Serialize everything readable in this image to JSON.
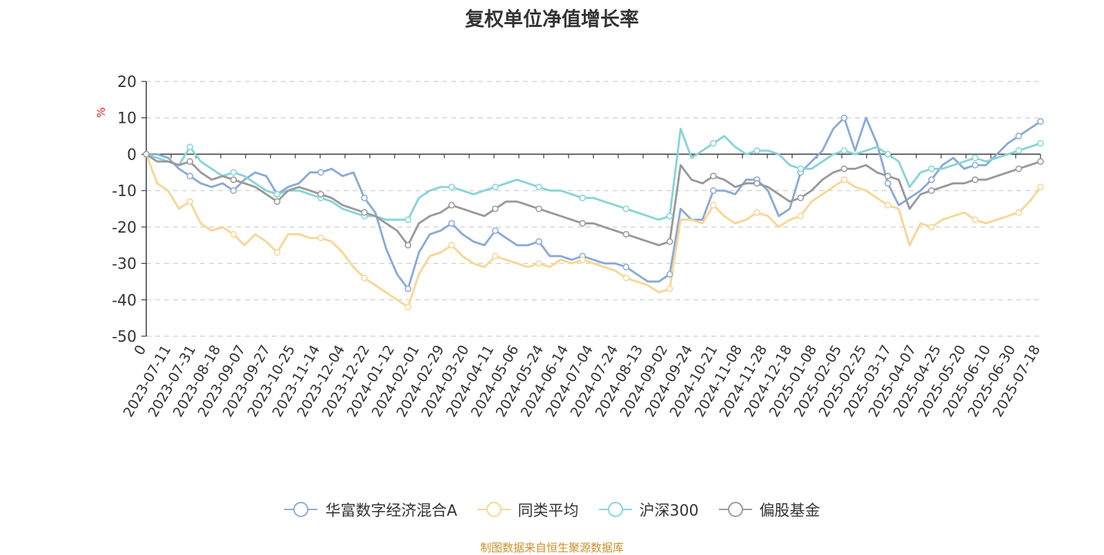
{
  "title": "复权单位净值增长率",
  "source_note": "制图数据来自恒生聚源数据库",
  "chart_data": {
    "type": "line",
    "title": "复权单位净值增长率",
    "ylabel": "%",
    "ylim": [
      -50,
      20
    ],
    "yticks": [
      20,
      10,
      0,
      -10,
      -20,
      -30,
      -40,
      -50
    ],
    "grid": true,
    "legend_position": "bottom",
    "x_tick_labels": [
      "0",
      "2023-07-11",
      "2023-07-31",
      "2023-08-18",
      "2023-09-07",
      "2023-09-27",
      "2023-10-25",
      "2023-11-14",
      "2023-12-04",
      "2023-12-22",
      "2024-01-12",
      "2024-02-01",
      "2024-02-29",
      "2024-03-20",
      "2024-04-11",
      "2024-05-06",
      "2024-05-24",
      "2024-06-14",
      "2024-07-04",
      "2024-07-24",
      "2024-08-13",
      "2024-09-02",
      "2024-09-24",
      "2024-10-21",
      "2024-11-08",
      "2024-11-28",
      "2024-12-18",
      "2025-01-08",
      "2025-02-05",
      "2025-02-25",
      "2025-03-17",
      "2025-04-07",
      "2025-04-25",
      "2025-05-20",
      "2025-06-10",
      "2025-06-30",
      "2025-07-18"
    ],
    "series": [
      {
        "name": "华富数字经济混合A",
        "color": "#8aaad8",
        "values": [
          0,
          0,
          -1,
          -4,
          -6,
          -8,
          -9,
          -8,
          -10,
          -7,
          -5,
          -6,
          -11,
          -9,
          -8,
          -5,
          -5,
          -4,
          -6,
          -5,
          -12,
          -16,
          -26,
          -33,
          -37,
          -27,
          -22,
          -21,
          -19,
          -22,
          -24,
          -25,
          -21,
          -23,
          -25,
          -25,
          -24,
          -28,
          -28,
          -29,
          -28,
          -29,
          -30,
          -30,
          -31,
          -33,
          -35,
          -35,
          -33,
          -15,
          -18,
          -18,
          -10,
          -10,
          -11,
          -7,
          -7,
          -10,
          -17,
          -15,
          -5,
          -2,
          1,
          7,
          10,
          1,
          10,
          3,
          -8,
          -14,
          -12,
          -10,
          -7,
          -3,
          -1,
          -4,
          -3,
          -3,
          0,
          3,
          5,
          7,
          9
        ]
      },
      {
        "name": "同类平均",
        "color": "#f9d593",
        "values": [
          0,
          -8,
          -10,
          -15,
          -13,
          -19,
          -21,
          -20,
          -22,
          -25,
          -22,
          -24,
          -27,
          -22,
          -22,
          -23,
          -23,
          -24,
          -27,
          -31,
          -34,
          -36,
          -38,
          -40,
          -42,
          -33,
          -28,
          -27,
          -25,
          -28,
          -30,
          -31,
          -28,
          -29,
          -30,
          -31,
          -30,
          -31,
          -29,
          -30,
          -29,
          -30,
          -31,
          -32,
          -34,
          -35,
          -36,
          -38,
          -37,
          -18,
          -18,
          -19,
          -14,
          -17,
          -19,
          -18,
          -16,
          -17,
          -20,
          -18,
          -17,
          -13,
          -11,
          -9,
          -7,
          -9,
          -10,
          -12,
          -14,
          -15,
          -25,
          -19,
          -20,
          -18,
          -17,
          -16,
          -18,
          -19,
          -18,
          -17,
          -16,
          -13,
          -9
        ]
      },
      {
        "name": "沪深300",
        "color": "#87d4d8",
        "values": [
          0,
          -1,
          -2,
          -3,
          2,
          -2,
          -4,
          -6,
          -5,
          -6,
          -8,
          -10,
          -11,
          -10,
          -10,
          -11,
          -12,
          -13,
          -15,
          -16,
          -17,
          -17,
          -18,
          -18,
          -18,
          -12,
          -10,
          -9,
          -9,
          -10,
          -11,
          -10,
          -9,
          -8,
          -7,
          -8,
          -9,
          -10,
          -10,
          -11,
          -12,
          -12,
          -13,
          -14,
          -15,
          -16,
          -17,
          -18,
          -17,
          7,
          -1,
          1,
          3,
          5,
          2,
          0,
          1,
          1,
          0,
          -3,
          -4,
          -4,
          -2,
          0,
          1,
          0,
          1,
          2,
          0,
          -2,
          -9,
          -5,
          -4,
          -4,
          -3,
          -2,
          -1,
          -2,
          -1,
          0,
          1,
          2,
          3
        ]
      },
      {
        "name": "偏股基金",
        "color": "#999999",
        "values": [
          0,
          -2,
          -2,
          -3,
          -2,
          -5,
          -7,
          -6,
          -7,
          -8,
          -9,
          -11,
          -13,
          -10,
          -9,
          -10,
          -11,
          -12,
          -14,
          -15,
          -16,
          -17,
          -19,
          -21,
          -25,
          -19,
          -17,
          -16,
          -14,
          -15,
          -16,
          -17,
          -15,
          -13,
          -13,
          -14,
          -15,
          -16,
          -17,
          -18,
          -19,
          -19,
          -20,
          -21,
          -22,
          -23,
          -24,
          -25,
          -24,
          -3,
          -7,
          -8,
          -6,
          -7,
          -9,
          -8,
          -8,
          -9,
          -11,
          -13,
          -12,
          -10,
          -7,
          -5,
          -4,
          -4,
          -3,
          -5,
          -6,
          -7,
          -15,
          -11,
          -10,
          -9,
          -8,
          -8,
          -7,
          -7,
          -6,
          -5,
          -4,
          -3,
          -2
        ]
      }
    ]
  }
}
